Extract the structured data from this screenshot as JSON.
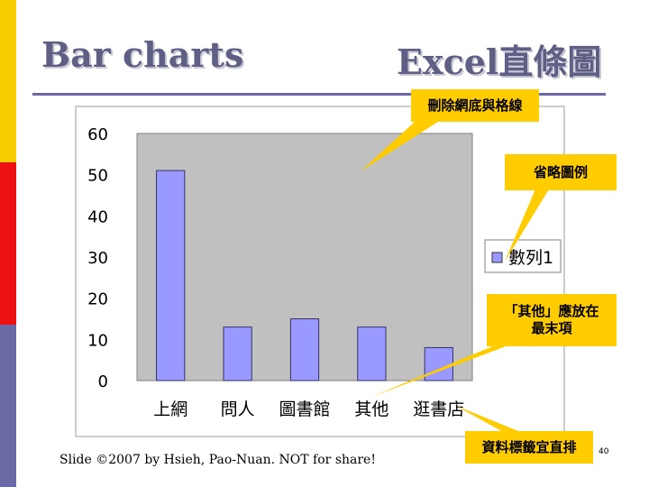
{
  "slide": {
    "title_left": "Bar charts",
    "title_right": "Excel直條圖",
    "footer": "Slide ©2007 by Hsieh, Pao-Nuan. NOT for share!",
    "slide_number": "40",
    "strip_colors": [
      "#f7cc00",
      "#ee1111",
      "#6b6aa7"
    ],
    "title_color": "#5f5f86"
  },
  "callouts": [
    {
      "text": "刪除網底與格線"
    },
    {
      "text": "省略圖例"
    },
    {
      "text": "「其他」應放在\n最末項"
    },
    {
      "text": "資料標籤宜直排"
    }
  ],
  "callout_color": "#ffcc00",
  "chart_data": {
    "type": "bar",
    "categories": [
      "上網",
      "問人",
      "圖書館",
      "其他",
      "逛書店"
    ],
    "series": [
      {
        "name": "數列1",
        "values": [
          51,
          13,
          15,
          13,
          8
        ],
        "color": "#9999ff"
      }
    ],
    "ylim": [
      0,
      60
    ],
    "yticks": [
      0,
      10,
      20,
      30,
      40,
      50,
      60
    ],
    "plot_background": "#c0c0c0",
    "grid": false,
    "legend": "right"
  }
}
